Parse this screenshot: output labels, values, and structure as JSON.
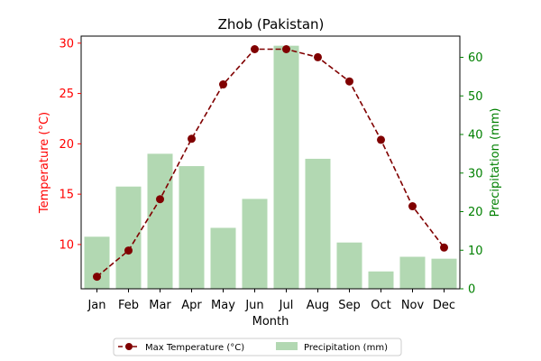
{
  "chart_data": {
    "type": "bar+line",
    "title": "Zhob (Pakistan)",
    "xlabel": "Month",
    "categories": [
      "Jan",
      "Feb",
      "Mar",
      "Apr",
      "May",
      "Jun",
      "Jul",
      "Aug",
      "Sep",
      "Oct",
      "Nov",
      "Dec"
    ],
    "y_left": {
      "label": "Temperature (°C)",
      "ticks": [
        "10",
        "15",
        "20",
        "25",
        "30"
      ],
      "range": [
        5.6,
        30.7
      ],
      "color": "#ff0000"
    },
    "y_right": {
      "label": "Precipitation (mm)",
      "ticks": [
        "0",
        "10",
        "20",
        "30",
        "40",
        "50",
        "60"
      ],
      "range": [
        0,
        65.5
      ],
      "color": "#008000"
    },
    "series": [
      {
        "name": "Max Temperature (°C)",
        "type": "line",
        "axis": "left",
        "color": "#800000",
        "values": [
          6.8,
          9.4,
          14.5,
          20.5,
          25.9,
          29.4,
          29.4,
          28.6,
          26.2,
          20.4,
          13.8,
          9.7
        ]
      },
      {
        "name": "Precipitation (mm)",
        "type": "bar",
        "axis": "right",
        "color": "#b2d8b2",
        "values": [
          13.5,
          26.5,
          35.0,
          31.8,
          15.8,
          23.3,
          63.0,
          33.7,
          12.0,
          4.5,
          8.3,
          7.8
        ]
      }
    ],
    "legend": {
      "placement": "bottom-center"
    }
  }
}
